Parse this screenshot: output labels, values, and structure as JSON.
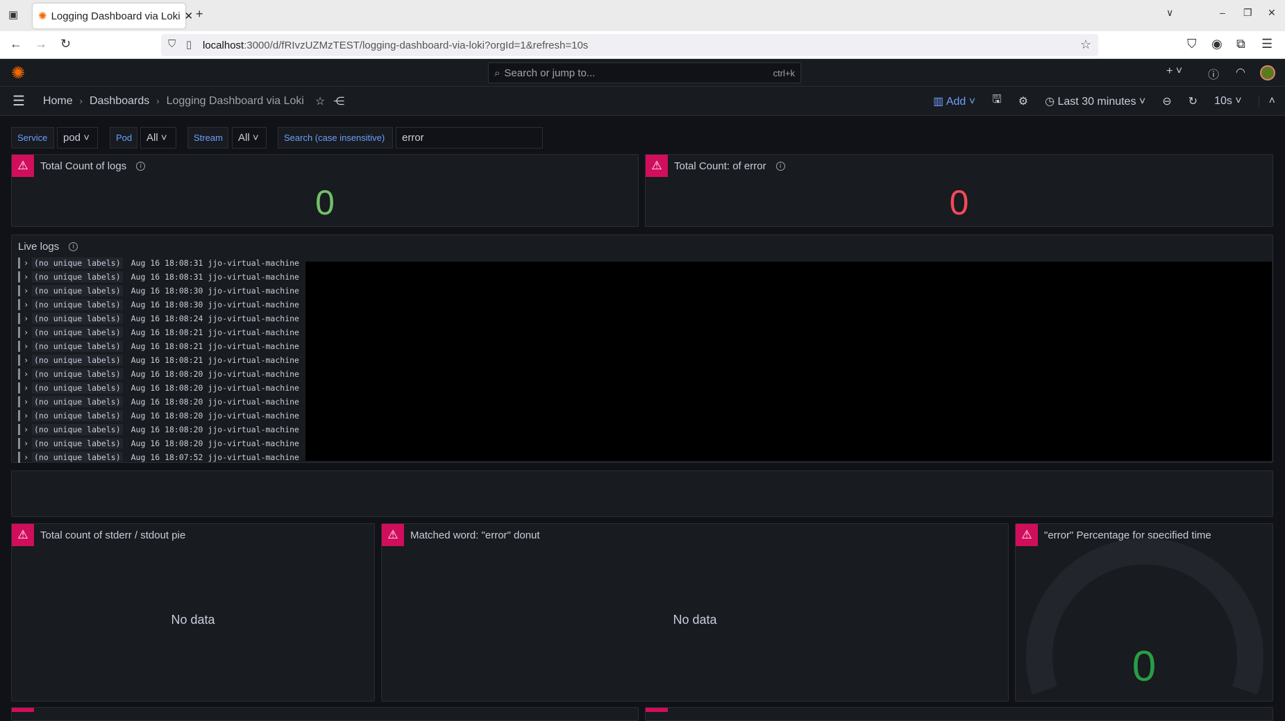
{
  "browser": {
    "tab_title": "Logging Dashboard via Loki",
    "url_host": "localhost",
    "url_rest": ":3000/d/fRIvzUZMzTEST/logging-dashboard-via-loki?orgId=1&refresh=10s"
  },
  "topbar": {
    "search_placeholder": "Search or jump to...",
    "shortcut": "ctrl+k"
  },
  "breadcrumb": {
    "items": [
      "Home",
      "Dashboards",
      "Logging Dashboard via Loki"
    ]
  },
  "toolbar": {
    "add": "Add",
    "time_range": "Last 30 minutes",
    "refresh": "10s"
  },
  "variables": [
    {
      "label": "Service",
      "value": "pod"
    },
    {
      "label": "Pod",
      "value": "All"
    },
    {
      "label": "Stream",
      "value": "All"
    },
    {
      "label": "Search (case insensitive)",
      "value": "error"
    }
  ],
  "panels": {
    "total_logs": {
      "title": "Total Count of logs",
      "value": "0",
      "color": "#73bf69"
    },
    "total_error": {
      "title": "Total Count: of error",
      "value": "0",
      "color": "#f2495c"
    },
    "live_logs": {
      "title": "Live logs",
      "rows": [
        {
          "labels": "(no unique labels)",
          "time": "Aug 16 18:08:31",
          "host": "jjo-virtual-machine"
        },
        {
          "labels": "(no unique labels)",
          "time": "Aug 16 18:08:31",
          "host": "jjo-virtual-machine"
        },
        {
          "labels": "(no unique labels)",
          "time": "Aug 16 18:08:30",
          "host": "jjo-virtual-machine"
        },
        {
          "labels": "(no unique labels)",
          "time": "Aug 16 18:08:30",
          "host": "jjo-virtual-machine"
        },
        {
          "labels": "(no unique labels)",
          "time": "Aug 16 18:08:24",
          "host": "jjo-virtual-machine"
        },
        {
          "labels": "(no unique labels)",
          "time": "Aug 16 18:08:21",
          "host": "jjo-virtual-machine"
        },
        {
          "labels": "(no unique labels)",
          "time": "Aug 16 18:08:21",
          "host": "jjo-virtual-machine"
        },
        {
          "labels": "(no unique labels)",
          "time": "Aug 16 18:08:21",
          "host": "jjo-virtual-machine"
        },
        {
          "labels": "(no unique labels)",
          "time": "Aug 16 18:08:20",
          "host": "jjo-virtual-machine"
        },
        {
          "labels": "(no unique labels)",
          "time": "Aug 16 18:08:20",
          "host": "jjo-virtual-machine"
        },
        {
          "labels": "(no unique labels)",
          "time": "Aug 16 18:08:20",
          "host": "jjo-virtual-machine"
        },
        {
          "labels": "(no unique labels)",
          "time": "Aug 16 18:08:20",
          "host": "jjo-virtual-machine"
        },
        {
          "labels": "(no unique labels)",
          "time": "Aug 16 18:08:20",
          "host": "jjo-virtual-machine"
        },
        {
          "labels": "(no unique labels)",
          "time": "Aug 16 18:08:20",
          "host": "jjo-virtual-machine"
        },
        {
          "labels": "(no unique labels)",
          "time": "Aug 16 18:07:52",
          "host": "jjo-virtual-machine"
        }
      ]
    },
    "pie": {
      "title": "Total count of stderr / stdout pie",
      "empty": "No data"
    },
    "donut": {
      "title": "Matched word: \"error\" donut",
      "empty": "No data"
    },
    "gauge": {
      "title": "\"error\" Percentage for specified time",
      "value": "0",
      "percent": 0,
      "color": "#299c46"
    }
  }
}
